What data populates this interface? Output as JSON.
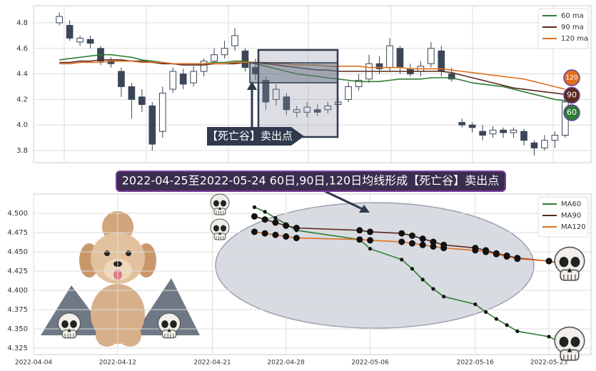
{
  "chart_data": [
    {
      "type": "candlestick",
      "open": [
        4.8,
        4.78,
        4.65,
        4.67,
        4.6,
        4.5,
        4.42,
        4.3,
        4.22,
        4.15,
        3.95,
        4.28,
        4.4,
        4.33,
        4.42,
        4.5,
        4.55,
        4.62,
        4.58,
        4.45,
        4.35,
        4.2,
        4.22,
        4.1,
        4.1,
        4.12,
        4.12,
        4.16,
        4.2,
        4.3,
        4.36,
        4.48,
        4.45,
        4.6,
        4.44,
        4.42,
        4.48,
        4.58,
        4.4,
        4.02,
        4.0,
        3.95,
        3.93,
        3.96,
        3.94,
        3.95,
        3.86,
        3.82,
        3.88,
        3.92
      ],
      "high": [
        4.88,
        4.82,
        4.7,
        4.7,
        4.62,
        4.53,
        4.45,
        4.33,
        4.28,
        4.18,
        4.3,
        4.45,
        4.44,
        4.46,
        4.52,
        4.6,
        4.66,
        4.76,
        4.6,
        4.52,
        4.38,
        4.32,
        4.25,
        4.15,
        4.18,
        4.16,
        4.18,
        4.22,
        4.34,
        4.4,
        4.55,
        4.54,
        4.68,
        4.62,
        4.48,
        4.5,
        4.65,
        4.62,
        4.45,
        4.05,
        4.02,
        4.0,
        3.99,
        3.98,
        3.98,
        3.97,
        3.88,
        3.92,
        3.95,
        4.25
      ],
      "low": [
        4.78,
        4.66,
        4.62,
        4.6,
        4.47,
        4.45,
        4.22,
        4.05,
        4.1,
        3.8,
        3.9,
        4.25,
        4.28,
        4.3,
        4.38,
        4.48,
        4.52,
        4.58,
        4.42,
        4.35,
        4.12,
        4.15,
        4.08,
        4.06,
        4.06,
        4.07,
        4.09,
        4.14,
        4.18,
        4.27,
        4.33,
        4.4,
        4.42,
        4.4,
        4.38,
        4.38,
        4.45,
        4.38,
        4.34,
        3.98,
        3.94,
        3.88,
        3.9,
        3.9,
        3.9,
        3.84,
        3.76,
        3.8,
        3.82,
        3.9
      ],
      "close": [
        4.85,
        4.68,
        4.68,
        4.64,
        4.5,
        4.48,
        4.3,
        4.2,
        4.16,
        3.85,
        4.25,
        4.42,
        4.32,
        4.42,
        4.5,
        4.55,
        4.6,
        4.7,
        4.45,
        4.4,
        4.18,
        4.28,
        4.12,
        4.12,
        4.14,
        4.1,
        4.15,
        4.18,
        4.3,
        4.35,
        4.48,
        4.44,
        4.62,
        4.45,
        4.4,
        4.46,
        4.6,
        4.42,
        4.36,
        4.0,
        3.98,
        3.92,
        3.96,
        3.94,
        3.96,
        3.88,
        3.82,
        3.88,
        3.92,
        4.18
      ],
      "up_color": "#ffffff",
      "down_color": "#3a4658",
      "edge_color": "#3a4658",
      "series": [
        {
          "name": "60 ma",
          "badge": "60",
          "color": "#2e7d32",
          "values": [
            4.51,
            4.52,
            4.53,
            4.54,
            4.55,
            4.55,
            4.54,
            4.53,
            4.51,
            4.5,
            4.49,
            4.48,
            4.48,
            4.48,
            4.48,
            4.49,
            4.49,
            4.5,
            4.5,
            4.48,
            4.46,
            4.44,
            4.42,
            4.4,
            4.39,
            4.38,
            4.37,
            4.36,
            4.35,
            4.34,
            4.34,
            4.34,
            4.35,
            4.36,
            4.36,
            4.36,
            4.37,
            4.37,
            4.37,
            4.35,
            4.33,
            4.32,
            4.31,
            4.3,
            4.28,
            4.26,
            4.24,
            4.22,
            4.2,
            4.19
          ]
        },
        {
          "name": "90 ma",
          "badge": "90",
          "color": "#5a2a1e",
          "values": [
            4.49,
            4.49,
            4.5,
            4.5,
            4.51,
            4.51,
            4.51,
            4.5,
            4.5,
            4.49,
            4.48,
            4.48,
            4.47,
            4.47,
            4.47,
            4.48,
            4.48,
            4.48,
            4.49,
            4.49,
            4.48,
            4.47,
            4.46,
            4.45,
            4.44,
            4.43,
            4.43,
            4.42,
            4.42,
            4.42,
            4.42,
            4.42,
            4.42,
            4.42,
            4.42,
            4.42,
            4.42,
            4.42,
            4.41,
            4.39,
            4.37,
            4.35,
            4.33,
            4.31,
            4.29,
            4.28,
            4.27,
            4.26,
            4.25,
            4.24
          ]
        },
        {
          "name": "120 ma",
          "badge": "120",
          "color": "#e07020",
          "values": [
            4.48,
            4.48,
            4.49,
            4.49,
            4.49,
            4.5,
            4.5,
            4.5,
            4.49,
            4.49,
            4.49,
            4.48,
            4.48,
            4.48,
            4.48,
            4.48,
            4.48,
            4.49,
            4.49,
            4.49,
            4.49,
            4.48,
            4.48,
            4.47,
            4.47,
            4.47,
            4.46,
            4.46,
            4.46,
            4.46,
            4.45,
            4.45,
            4.45,
            4.45,
            4.44,
            4.44,
            4.44,
            4.44,
            4.43,
            4.42,
            4.41,
            4.4,
            4.39,
            4.38,
            4.37,
            4.36,
            4.34,
            4.32,
            4.3,
            4.28
          ]
        }
      ],
      "ylim": [
        3.705,
        4.934
      ],
      "yticks": [
        3.8,
        {
          "value": 4,
          "label": "4.0"
        },
        4.2,
        4.4,
        4.6,
        4.8
      ],
      "grid": true,
      "legend": "upper right",
      "annotation": "【死亡谷】卖出点"
    },
    {
      "type": "line",
      "title": "2022-04-25至2022-05-24 60日,90日,120日均线形成【死亡谷】卖出点",
      "x": [
        "2022-04-25",
        "2022-04-26",
        "2022-04-27",
        "2022-04-28",
        "2022-04-29",
        "2022-05-05",
        "2022-05-06",
        "2022-05-09",
        "2022-05-10",
        "2022-05-11",
        "2022-05-12",
        "2022-05-13",
        "2022-05-16",
        "2022-05-17",
        "2022-05-18",
        "2022-05-19",
        "2022-05-20",
        "2022-05-23",
        "2022-05-24"
      ],
      "series": [
        {
          "name": "MA60",
          "color": "#2e7d32",
          "values": [
            4.508,
            4.502,
            4.494,
            4.486,
            4.478,
            4.466,
            4.454,
            4.44,
            4.428,
            4.414,
            4.402,
            4.392,
            4.382,
            4.372,
            4.363,
            4.355,
            4.347,
            4.34,
            4.333
          ]
        },
        {
          "name": "MA90",
          "color": "#5a2a1e",
          "values": [
            4.496,
            4.492,
            4.488,
            4.484,
            4.481,
            4.478,
            4.476,
            4.474,
            4.471,
            4.467,
            4.463,
            4.459,
            4.455,
            4.452,
            4.448,
            4.445,
            4.442,
            4.438,
            4.435
          ]
        },
        {
          "name": "MA120",
          "color": "#e07020",
          "values": [
            4.476,
            4.474,
            4.472,
            4.47,
            4.468,
            4.466,
            4.465,
            4.463,
            4.461,
            4.459,
            4.457,
            4.455,
            4.452,
            4.45,
            4.447,
            4.444,
            4.441,
            4.438,
            4.436
          ]
        }
      ],
      "xlim": [
        "2022-04-04",
        "2022-05-27"
      ],
      "xticks": [
        "2022-04-04",
        "2022-04-12",
        "2022-04-21",
        "2022-04-28",
        "2022-05-06",
        "2022-05-16",
        "2022-05-23"
      ],
      "ylim": [
        4.3167,
        4.525
      ],
      "yticks": [
        {
          "value": 4.5,
          "label": "4.500"
        },
        4.475,
        {
          "value": 4.45,
          "label": "4.450"
        },
        4.425,
        {
          "value": 4.4,
          "label": "4.400"
        },
        4.375,
        {
          "value": 4.35,
          "label": "4.350"
        },
        4.325
      ],
      "grid": true,
      "legend": "upper right"
    }
  ]
}
